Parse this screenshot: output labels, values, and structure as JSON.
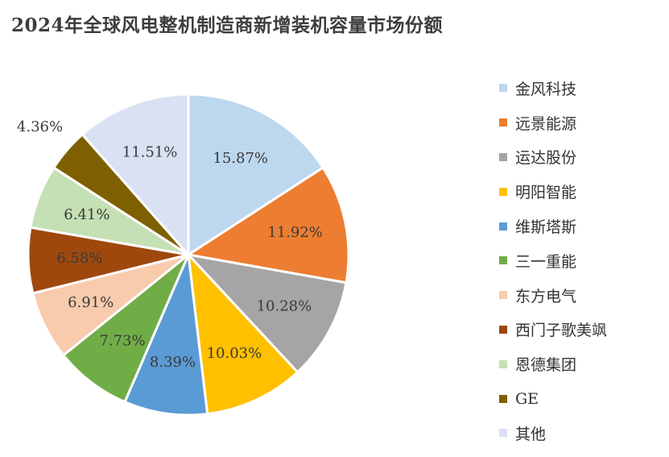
{
  "title": "2024年全球风电整机制造商新增装机容量市场份额",
  "chart_data": {
    "type": "pie",
    "title": "2024年全球风电整机制造商新增装机容量市场份额",
    "unit": "%",
    "start_angle_deg": 0,
    "direction": "clockwise",
    "legend_position": "right",
    "slices": [
      {
        "label": "金风科技",
        "value": 15.87,
        "display": "15.87%",
        "color": "#bdd7ee"
      },
      {
        "label": "远景能源",
        "value": 11.92,
        "display": "11.92%",
        "color": "#ed7d31"
      },
      {
        "label": "运达股份",
        "value": 10.28,
        "display": "10.28%",
        "color": "#a5a5a5"
      },
      {
        "label": "明阳智能",
        "value": 10.03,
        "display": "10.03%",
        "color": "#ffc000"
      },
      {
        "label": "维斯塔斯",
        "value": 8.39,
        "display": "8.39%",
        "color": "#5b9bd5"
      },
      {
        "label": "三一重能",
        "value": 7.73,
        "display": "7.73%",
        "color": "#70ad47"
      },
      {
        "label": "东方电气",
        "value": 6.91,
        "display": "6.91%",
        "color": "#f8cbad"
      },
      {
        "label": "西门子歌美飒",
        "value": 6.58,
        "display": "6.58%",
        "color": "#9e480e"
      },
      {
        "label": "恩德集团",
        "value": 6.41,
        "display": "6.41%",
        "color": "#c5e0b4"
      },
      {
        "label": "GE",
        "value": 4.36,
        "display": "4.36%",
        "color": "#7f6000"
      },
      {
        "label": "其他",
        "value": 11.51,
        "display": "11.51%",
        "color": "#d9e1f2"
      }
    ]
  }
}
